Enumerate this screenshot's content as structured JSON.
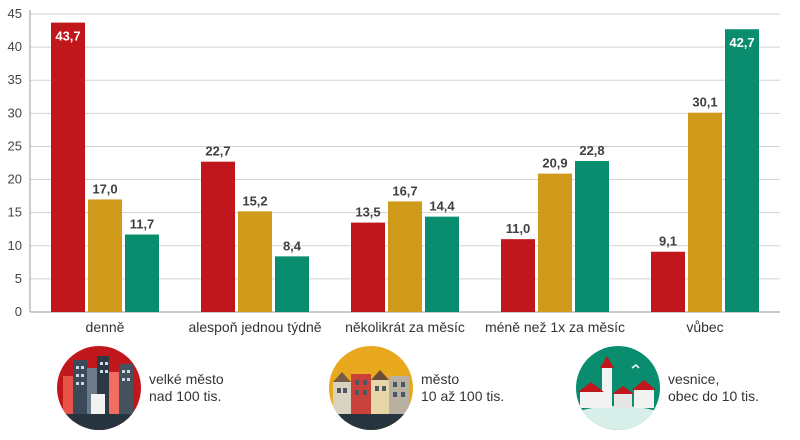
{
  "chart_data": {
    "type": "bar",
    "categories": [
      "denně",
      "alespoň jednou týdně",
      "několikrát za měsíc",
      "méně než 1x za měsíc",
      "vůbec"
    ],
    "series": [
      {
        "name": "velké město nad 100 tis.",
        "color": "#c0171c",
        "values": [
          43.7,
          22.7,
          13.5,
          11.0,
          9.1
        ]
      },
      {
        "name": "město 10 až 100 tis.",
        "color": "#d09a1b",
        "values": [
          17.0,
          15.2,
          16.7,
          20.9,
          30.1
        ]
      },
      {
        "name": "vesnice, obec do 10 tis.",
        "color": "#0a8d6f",
        "values": [
          11.7,
          8.4,
          14.4,
          22.8,
          42.7
        ]
      }
    ],
    "value_labels": [
      [
        "43,7",
        "22,7",
        "13,5",
        "11,0",
        "9,1"
      ],
      [
        "17,0",
        "15,2",
        "16,7",
        "20,9",
        "30,1"
      ],
      [
        "11,7",
        "8,4",
        "14,4",
        "22,8",
        "42,7"
      ]
    ],
    "yticks": [
      0,
      5,
      10,
      15,
      20,
      25,
      30,
      35,
      40,
      45
    ],
    "ylim": [
      0,
      45
    ],
    "title": "",
    "xlabel": "",
    "ylabel": ""
  },
  "legend": [
    {
      "line1": "velké město",
      "line2": "nad 100 tis."
    },
    {
      "line1": "město",
      "line2": "10 až 100 tis."
    },
    {
      "line1": "vesnice,",
      "line2": "obec do 10 tis."
    }
  ]
}
